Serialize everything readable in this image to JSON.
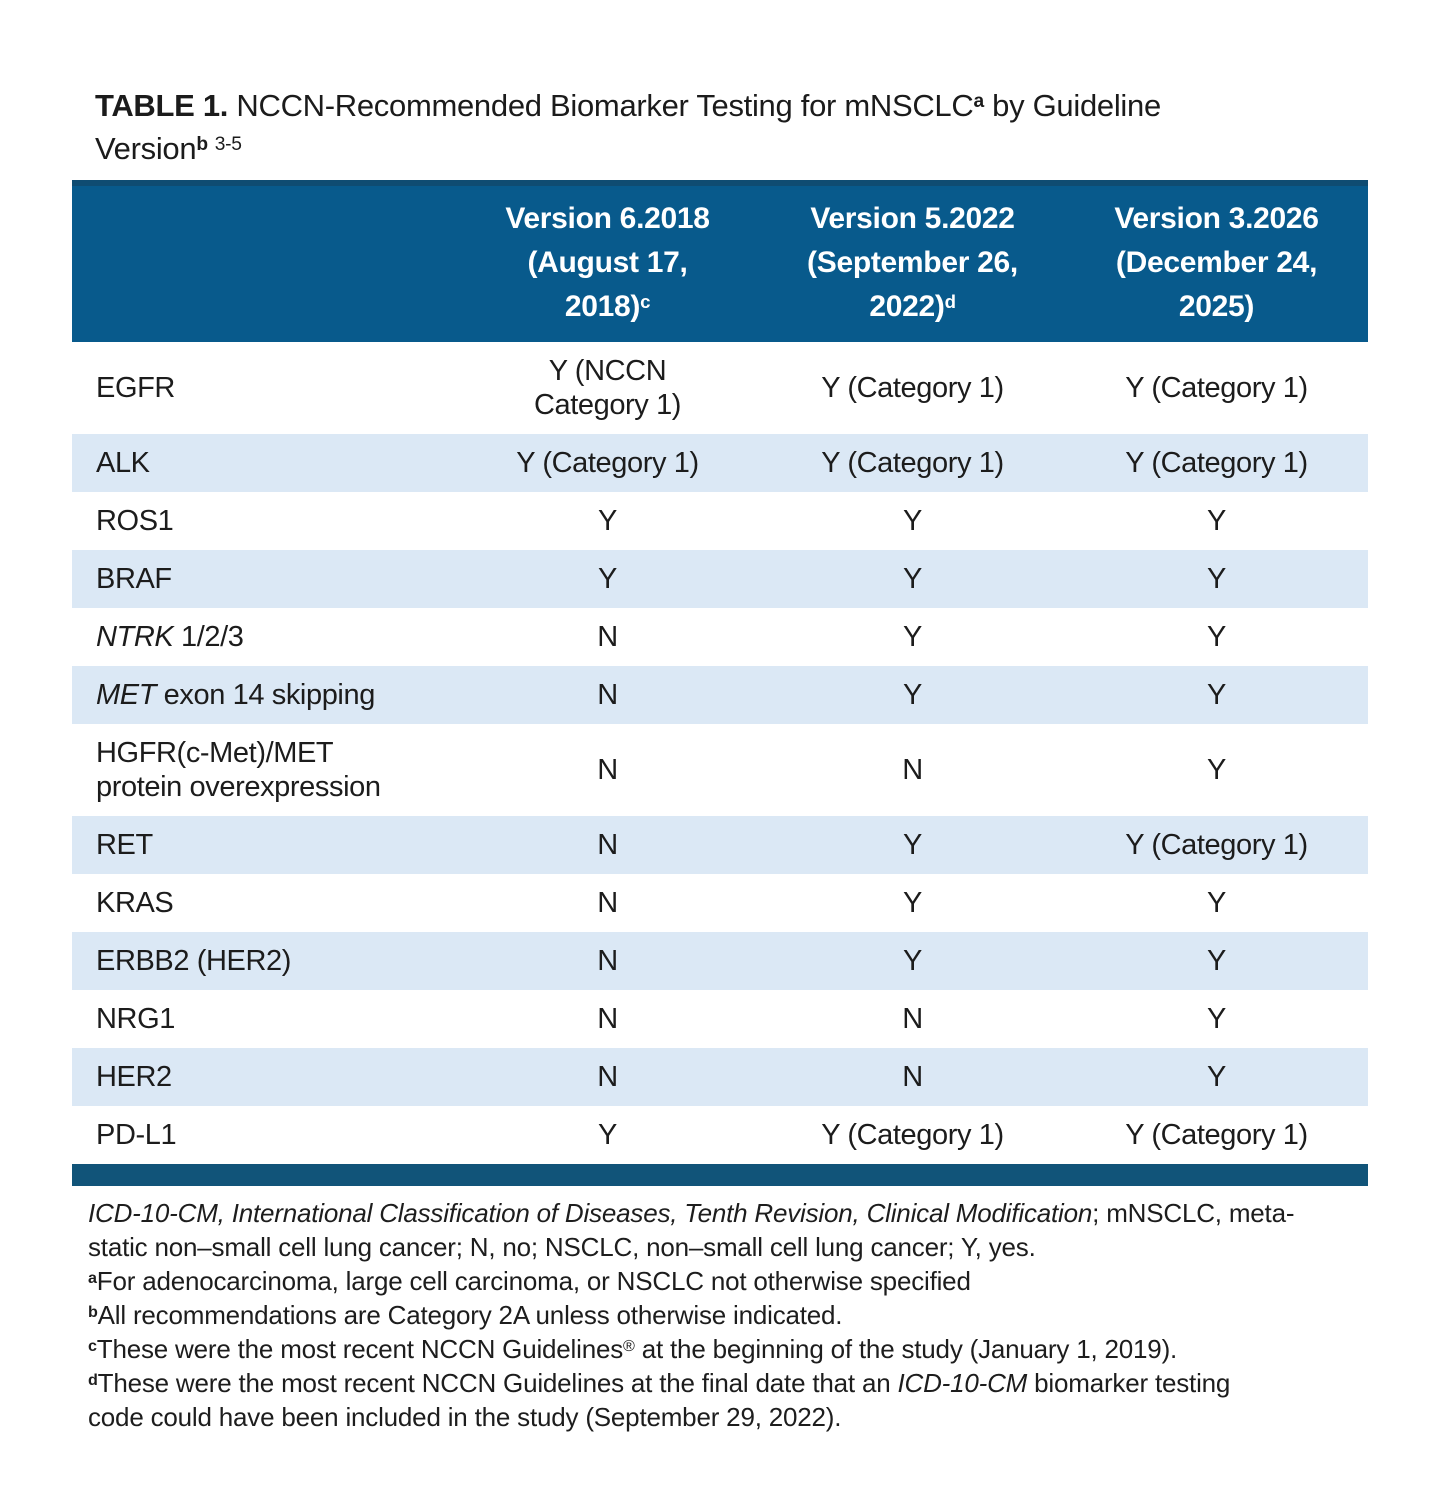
{
  "title": {
    "bold": "TABLE 1.",
    "line1_rest": " NCCN-Recommended Biomarker Testing for mNSCLC",
    "sup_a": "a",
    "line1_tail": " by Guideline",
    "line2_text": "Version",
    "sup_b": "b",
    "sup_refs": "3-5"
  },
  "table": {
    "colors": {
      "header_bg": "#085a8c",
      "header_top": "#0f4c72",
      "header_text": "#ffffff",
      "stripe": "#dbe8f5",
      "bottom_bar": "#115479"
    },
    "columns": [
      {
        "lines": [
          "Version 6.2018",
          "(August 17,",
          "2018)"
        ],
        "sup": "c"
      },
      {
        "lines": [
          "Version 5.2022",
          "(September 26,",
          "2022)"
        ],
        "sup": "d"
      },
      {
        "lines": [
          "Version 3.2026",
          "(December 24,",
          "2025)"
        ],
        "sup": ""
      }
    ],
    "rows": [
      {
        "name_lines": [
          [
            {
              "t": "EGFR"
            }
          ]
        ],
        "values": [
          [
            "Y (NCCN",
            "Category 1)"
          ],
          [
            "Y (Category 1)"
          ],
          [
            "Y (Category 1)"
          ]
        ]
      },
      {
        "name_lines": [
          [
            {
              "t": "ALK"
            }
          ]
        ],
        "values": [
          [
            "Y (Category 1)"
          ],
          [
            "Y (Category 1)"
          ],
          [
            "Y (Category 1)"
          ]
        ]
      },
      {
        "name_lines": [
          [
            {
              "t": "ROS1"
            }
          ]
        ],
        "values": [
          [
            "Y"
          ],
          [
            "Y"
          ],
          [
            "Y"
          ]
        ]
      },
      {
        "name_lines": [
          [
            {
              "t": "BRAF"
            }
          ]
        ],
        "values": [
          [
            "Y"
          ],
          [
            "Y"
          ],
          [
            "Y"
          ]
        ]
      },
      {
        "name_lines": [
          [
            {
              "t": "NTRK",
              "i": true
            },
            {
              "t": " 1/2/3"
            }
          ]
        ],
        "values": [
          [
            "N"
          ],
          [
            "Y"
          ],
          [
            "Y"
          ]
        ]
      },
      {
        "name_lines": [
          [
            {
              "t": "MET",
              "i": true
            },
            {
              "t": " exon 14 skipping"
            }
          ]
        ],
        "values": [
          [
            "N"
          ],
          [
            "Y"
          ],
          [
            "Y"
          ]
        ]
      },
      {
        "name_lines": [
          [
            {
              "t": "HGFR(c-Met)/MET"
            }
          ],
          [
            {
              "t": "protein overexpression"
            }
          ]
        ],
        "values": [
          [
            "N"
          ],
          [
            "N"
          ],
          [
            "Y"
          ]
        ]
      },
      {
        "name_lines": [
          [
            {
              "t": "RET"
            }
          ]
        ],
        "values": [
          [
            "N"
          ],
          [
            "Y"
          ],
          [
            "Y (Category 1)"
          ]
        ]
      },
      {
        "name_lines": [
          [
            {
              "t": "KRAS"
            }
          ]
        ],
        "values": [
          [
            "N"
          ],
          [
            "Y"
          ],
          [
            "Y"
          ]
        ]
      },
      {
        "name_lines": [
          [
            {
              "t": "ERBB2 (HER2)"
            }
          ]
        ],
        "values": [
          [
            "N"
          ],
          [
            "Y"
          ],
          [
            "Y"
          ]
        ]
      },
      {
        "name_lines": [
          [
            {
              "t": "NRG1"
            }
          ]
        ],
        "values": [
          [
            "N"
          ],
          [
            "N"
          ],
          [
            "Y"
          ]
        ]
      },
      {
        "name_lines": [
          [
            {
              "t": "HER2"
            }
          ]
        ],
        "values": [
          [
            "N"
          ],
          [
            "N"
          ],
          [
            "Y"
          ]
        ]
      },
      {
        "name_lines": [
          [
            {
              "t": "PD-L1"
            }
          ]
        ],
        "values": [
          [
            "Y"
          ],
          [
            "Y (Category 1)"
          ],
          [
            "Y (Category 1)"
          ]
        ]
      }
    ]
  },
  "footnotes": [
    [
      {
        "t": "ICD-10-CM, International Classification of Diseases, Tenth Revision, Clinical Modification",
        "i": true
      },
      {
        "t": "; mNSCLC, meta-"
      }
    ],
    [
      {
        "t": "static non–small cell lung cancer; N, no; NSCLC, non–small cell lung cancer; Y, yes."
      }
    ],
    [
      {
        "t": "a",
        "sup": true,
        "b": true
      },
      {
        "t": "For adenocarcinoma, large cell carcinoma, or NSCLC not otherwise specified"
      }
    ],
    [
      {
        "t": "b",
        "sup": true,
        "b": true
      },
      {
        "t": "All recommendations are Category 2A unless otherwise indicated."
      }
    ],
    [
      {
        "t": "c",
        "sup": true,
        "b": true
      },
      {
        "t": "These were the most recent NCCN Guidelines"
      },
      {
        "t": "®",
        "sup": true
      },
      {
        "t": " at the beginning of the study (January 1, 2019)."
      }
    ],
    [
      {
        "t": "d",
        "sup": true,
        "b": true
      },
      {
        "t": "These were the most recent NCCN Guidelines at the final date that an "
      },
      {
        "t": "ICD-10-CM",
        "i": true
      },
      {
        "t": " biomarker testing"
      }
    ],
    [
      {
        "t": "code could have been included in the study (September 29, 2022)."
      }
    ]
  ]
}
